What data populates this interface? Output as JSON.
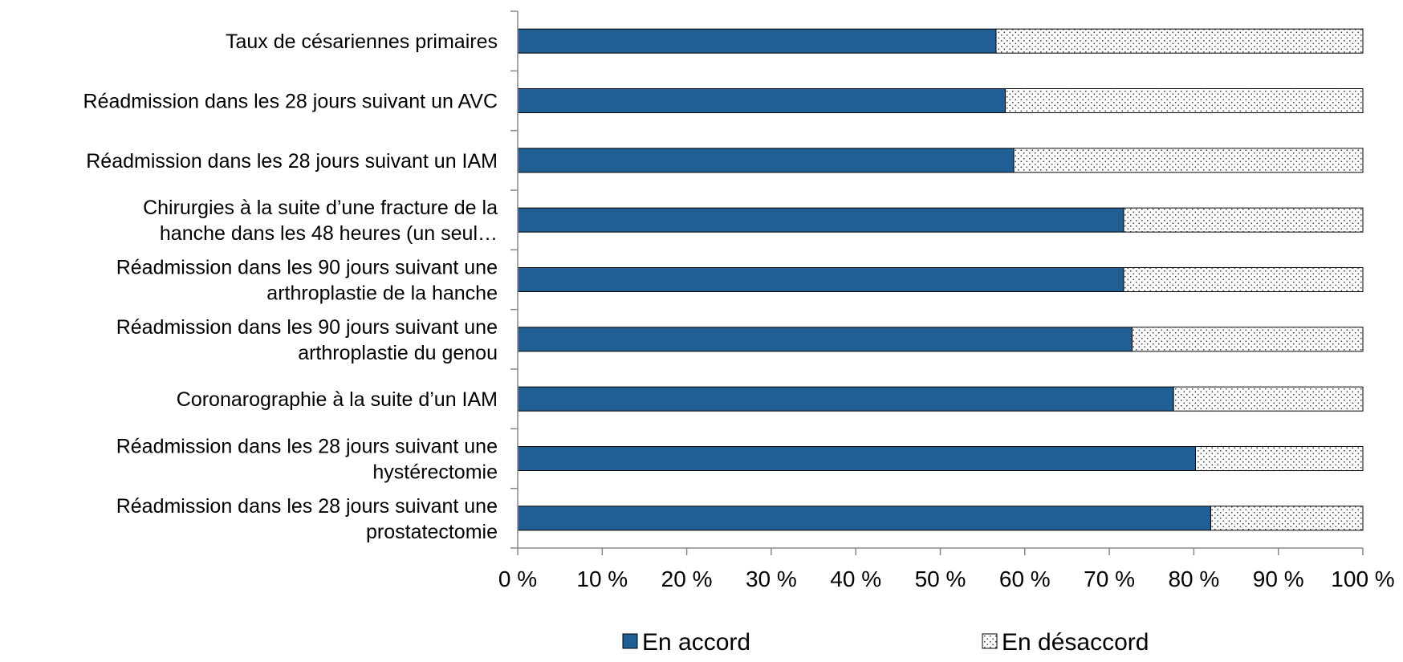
{
  "chart_data": {
    "type": "bar",
    "orientation": "horizontal",
    "stacked": "percent",
    "categories": [
      [
        "Taux de césariennes primaires"
      ],
      [
        "Réadmission dans les 28 jours suivant un AVC"
      ],
      [
        "Réadmission dans les 28 jours suivant un IAM"
      ],
      [
        "Chirurgies à la suite d’une fracture de la",
        "hanche dans les 48 heures (un seul…"
      ],
      [
        "Réadmission dans les 90 jours suivant une",
        "arthroplastie de la hanche"
      ],
      [
        "Réadmission dans les 90 jours suivant une",
        "arthroplastie du genou"
      ],
      [
        "Coronarographie à la suite d’un IAM"
      ],
      [
        "Réadmission dans les 28 jours suivant une",
        "hystérectomie"
      ],
      [
        "Réadmission dans les 28 jours suivant une",
        "prostatectomie"
      ]
    ],
    "series": [
      {
        "name": "En accord",
        "values": [
          56.6,
          57.7,
          58.7,
          71.7,
          71.7,
          72.7,
          77.6,
          80.2,
          82.0
        ],
        "color": "#1F5F94"
      },
      {
        "name": "En désaccord",
        "values": [
          43.4,
          42.3,
          41.3,
          28.3,
          28.3,
          27.3,
          22.4,
          19.8,
          18.0
        ],
        "color": "#FFFFFF",
        "pattern": "dots"
      }
    ],
    "xlim": [
      0,
      100
    ],
    "ticks": [
      "0 %",
      "10 %",
      "20 %",
      "30 %",
      "40 %",
      "50 %",
      "60 %",
      "70 %",
      "80 %",
      "90 %",
      "100 %"
    ],
    "grid": false,
    "legend": {
      "placement": "bottom"
    }
  }
}
